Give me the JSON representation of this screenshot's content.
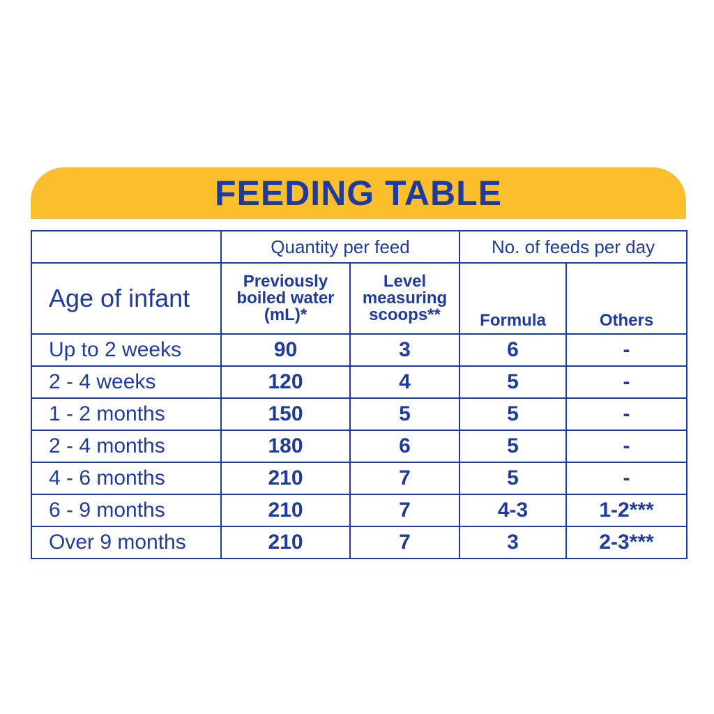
{
  "title": "FEEDING TABLE",
  "colors": {
    "banner": "#fbbf2e",
    "text": "#1f3c9c",
    "border": "#1f3c9c",
    "background": "#ffffff"
  },
  "table": {
    "group_headers": {
      "quantity": "Quantity per feed",
      "feeds": "No. of feeds per day"
    },
    "columns": {
      "age": "Age of infant",
      "water": [
        "Previously",
        "boiled water",
        "(mL)*"
      ],
      "scoops": [
        "Level",
        "measuring",
        "scoops**"
      ],
      "formula": "Formula",
      "others": "Others"
    },
    "rows": [
      {
        "age": "Up to 2 weeks",
        "water": "90",
        "scoops": "3",
        "formula": "6",
        "others": "-"
      },
      {
        "age": "2 - 4 weeks",
        "water": "120",
        "scoops": "4",
        "formula": "5",
        "others": "-"
      },
      {
        "age": "1 - 2 months",
        "water": "150",
        "scoops": "5",
        "formula": "5",
        "others": "-"
      },
      {
        "age": "2 - 4 months",
        "water": "180",
        "scoops": "6",
        "formula": "5",
        "others": "-"
      },
      {
        "age": "4 - 6 months",
        "water": "210",
        "scoops": "7",
        "formula": "5",
        "others": "-"
      },
      {
        "age": "6 - 9 months",
        "water": "210",
        "scoops": "7",
        "formula": "4-3",
        "others": "1-2***"
      },
      {
        "age": "Over 9 months",
        "water": "210",
        "scoops": "7",
        "formula": "3",
        "others": "2-3***"
      }
    ]
  }
}
